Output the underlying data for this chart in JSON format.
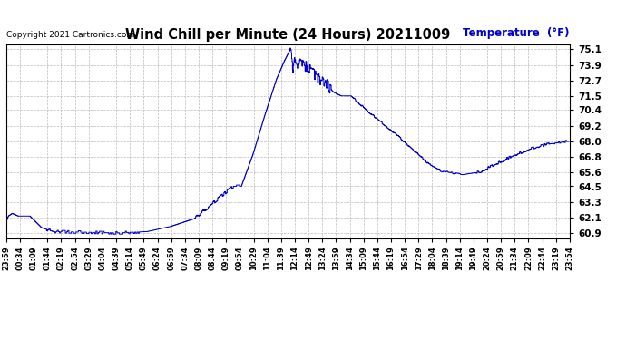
{
  "title": "Wind Chill per Minute (24 Hours) 20211009",
  "ylabel": "Temperature  (°F)",
  "copyright_text": "Copyright 2021 Cartronics.com",
  "line_color": "#0000cc",
  "background_color": "#ffffff",
  "grid_color": "#aaaaaa",
  "ylabel_color": "#0000cc",
  "title_color": "#000000",
  "yticks": [
    60.9,
    62.1,
    63.3,
    64.5,
    65.6,
    66.8,
    68.0,
    69.2,
    70.4,
    71.5,
    72.7,
    73.9,
    75.1
  ],
  "ylim": [
    60.5,
    75.5
  ],
  "x_labels": [
    "23:59",
    "00:34",
    "01:09",
    "01:44",
    "02:19",
    "02:54",
    "03:29",
    "04:04",
    "04:39",
    "05:14",
    "05:49",
    "06:24",
    "06:59",
    "07:34",
    "08:09",
    "08:44",
    "09:19",
    "09:54",
    "10:29",
    "11:04",
    "11:39",
    "12:14",
    "12:49",
    "13:24",
    "13:59",
    "14:34",
    "15:09",
    "15:44",
    "16:19",
    "16:54",
    "17:29",
    "18:04",
    "18:39",
    "19:14",
    "19:49",
    "20:24",
    "20:59",
    "21:34",
    "22:09",
    "22:44",
    "23:19",
    "23:54"
  ]
}
